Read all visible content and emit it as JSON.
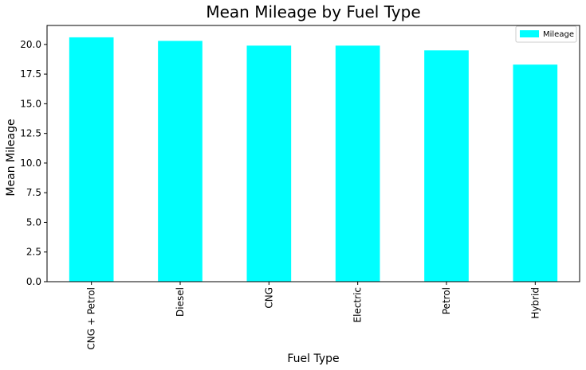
{
  "chart_data": {
    "type": "bar",
    "title": "Mean Mileage by Fuel Type",
    "xlabel": "Fuel Type",
    "ylabel": "Mean Mileage",
    "categories": [
      "CNG + Petrol",
      "Diesel",
      "CNG",
      "Electric",
      "Petrol",
      "Hybrid"
    ],
    "series": [
      {
        "name": "Mileage",
        "values": [
          20.6,
          20.3,
          19.9,
          19.9,
          19.5,
          18.3
        ],
        "color": "#00ffff"
      }
    ],
    "ylim": [
      0,
      21.6
    ],
    "yticks": [
      0.0,
      2.5,
      5.0,
      7.5,
      10.0,
      12.5,
      15.0,
      17.5,
      20.0
    ],
    "ytick_labels": [
      "0.0",
      "2.5",
      "5.0",
      "7.5",
      "10.0",
      "12.5",
      "15.0",
      "17.5",
      "20.0"
    ],
    "grid": false,
    "legend_position": "top-right",
    "xtick_rotation": "vertical"
  }
}
